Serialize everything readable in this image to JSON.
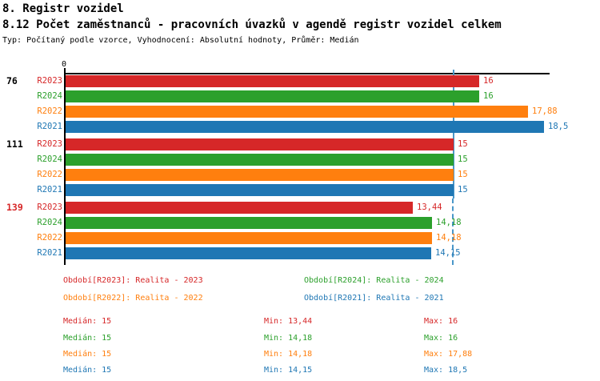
{
  "header": {
    "section_title": "8. Registr vozidel",
    "indicator_title": "8.12 Počet zaměstnanců - pracovních úvazků v agendě registr vozidel celkem",
    "meta": "Typ: Počítaný podle vzorce, Vyhodnocení: Absolutní hodnoty, Průměr: Medián"
  },
  "colors": {
    "R2023": "#d62728",
    "R2024": "#2ca02c",
    "R2022": "#ff7f0e",
    "R2021": "#1f77b4",
    "axis": "#000000",
    "median_line": "#4a97c9",
    "highlight_label": "#d62728"
  },
  "chart_data": {
    "type": "bar",
    "orientation": "horizontal",
    "zero_tick_label": "0",
    "xlim": [
      0,
      18.73
    ],
    "grid": false,
    "median_reference_value": 15,
    "series_order": [
      "R2023",
      "R2024",
      "R2022",
      "R2021"
    ],
    "groups": [
      {
        "label": "76",
        "label_color": "#000000",
        "bars": [
          {
            "series": "R2023",
            "value": 16,
            "value_label": "16"
          },
          {
            "series": "R2024",
            "value": 16,
            "value_label": "16"
          },
          {
            "series": "R2022",
            "value": 17.88,
            "value_label": "17,88"
          },
          {
            "series": "R2021",
            "value": 18.5,
            "value_label": "18,5"
          }
        ]
      },
      {
        "label": "111",
        "label_color": "#000000",
        "bars": [
          {
            "series": "R2023",
            "value": 15,
            "value_label": "15"
          },
          {
            "series": "R2024",
            "value": 15,
            "value_label": "15"
          },
          {
            "series": "R2022",
            "value": 15,
            "value_label": "15"
          },
          {
            "series": "R2021",
            "value": 15,
            "value_label": "15"
          }
        ]
      },
      {
        "label": "139",
        "label_color": "#d62728",
        "bars": [
          {
            "series": "R2023",
            "value": 13.44,
            "value_label": "13,44"
          },
          {
            "series": "R2024",
            "value": 14.18,
            "value_label": "14,18"
          },
          {
            "series": "R2022",
            "value": 14.18,
            "value_label": "14,18"
          },
          {
            "series": "R2021",
            "value": 14.15,
            "value_label": "14,15"
          }
        ]
      }
    ]
  },
  "legend": {
    "items": [
      {
        "series": "R2023",
        "text": "Období[R2023]: Realita - 2023"
      },
      {
        "series": "R2024",
        "text": "Období[R2024]: Realita - 2024"
      },
      {
        "series": "R2022",
        "text": "Období[R2022]: Realita - 2022"
      },
      {
        "series": "R2021",
        "text": "Období[R2021]: Realita - 2021"
      }
    ]
  },
  "stats": {
    "rows": [
      {
        "series": "R2023",
        "median": "Medián: 15",
        "min": "Min: 13,44",
        "max": "Max: 16"
      },
      {
        "series": "R2024",
        "median": "Medián: 15",
        "min": "Min: 14,18",
        "max": "Max: 16"
      },
      {
        "series": "R2022",
        "median": "Medián: 15",
        "min": "Min: 14,18",
        "max": "Max: 17,88"
      },
      {
        "series": "R2021",
        "median": "Medián: 15",
        "min": "Min: 14,15",
        "max": "Max: 18,5"
      }
    ]
  }
}
